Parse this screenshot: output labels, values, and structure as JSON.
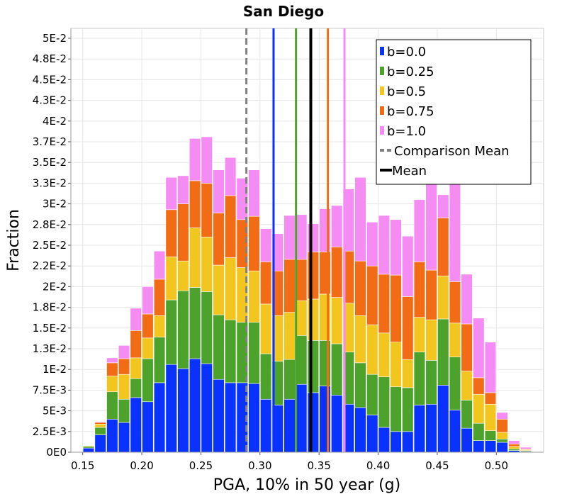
{
  "chart_data": {
    "type": "bar",
    "stacking": "stacked",
    "title": "San Diego",
    "xlabel": "PGA, 10% in 50 year (g)",
    "ylabel": "Fraction",
    "xlim": [
      0.14,
      0.54
    ],
    "ylim": [
      0,
      0.0512
    ],
    "x_ticks": [
      {
        "value": 0.15,
        "label": "0.15"
      },
      {
        "value": 0.2,
        "label": "0.20"
      },
      {
        "value": 0.25,
        "label": "0.25"
      },
      {
        "value": 0.3,
        "label": "0.30"
      },
      {
        "value": 0.35,
        "label": "0.35"
      },
      {
        "value": 0.4,
        "label": "0.40"
      },
      {
        "value": 0.45,
        "label": "0.45"
      },
      {
        "value": 0.5,
        "label": "0.50"
      }
    ],
    "y_ticks": [
      {
        "value": 0,
        "label": "0E0"
      },
      {
        "value": 0.0025,
        "label": "2.5E-3"
      },
      {
        "value": 0.005,
        "label": "5E-3"
      },
      {
        "value": 0.0075,
        "label": "7.5E-3"
      },
      {
        "value": 0.01,
        "label": "1E-2"
      },
      {
        "value": 0.0125,
        "label": "1.3E-2"
      },
      {
        "value": 0.015,
        "label": "1.5E-2"
      },
      {
        "value": 0.0175,
        "label": "1.8E-2"
      },
      {
        "value": 0.02,
        "label": "2E-2"
      },
      {
        "value": 0.0225,
        "label": "2.2E-2"
      },
      {
        "value": 0.025,
        "label": "2.5E-2"
      },
      {
        "value": 0.0275,
        "label": "2.8E-2"
      },
      {
        "value": 0.03,
        "label": "3E-2"
      },
      {
        "value": 0.0325,
        "label": "3.3E-2"
      },
      {
        "value": 0.035,
        "label": "3.5E-2"
      },
      {
        "value": 0.0375,
        "label": "3.7E-2"
      },
      {
        "value": 0.04,
        "label": "4E-2"
      },
      {
        "value": 0.0425,
        "label": "4.3E-2"
      },
      {
        "value": 0.045,
        "label": "4.5E-2"
      },
      {
        "value": 0.0475,
        "label": "4.8E-2"
      },
      {
        "value": 0.05,
        "label": "5E-2"
      }
    ],
    "bin_width": 0.01,
    "bin_centers": [
      0.155,
      0.165,
      0.175,
      0.185,
      0.195,
      0.205,
      0.215,
      0.225,
      0.235,
      0.245,
      0.255,
      0.265,
      0.275,
      0.285,
      0.295,
      0.305,
      0.315,
      0.325,
      0.335,
      0.345,
      0.355,
      0.365,
      0.375,
      0.385,
      0.395,
      0.405,
      0.415,
      0.425,
      0.435,
      0.445,
      0.455,
      0.465,
      0.475,
      0.485,
      0.495,
      0.505,
      0.515,
      0.525
    ],
    "series": [
      {
        "name": "b=0.0",
        "color": "#0a32ff",
        "values": [
          0.0005,
          0.0021,
          0.004,
          0.0036,
          0.0066,
          0.0061,
          0.0084,
          0.0106,
          0.0101,
          0.0113,
          0.0107,
          0.0088,
          0.0084,
          0.0084,
          0.0083,
          0.0064,
          0.0057,
          0.0064,
          0.0082,
          0.0072,
          0.008,
          0.0069,
          0.0058,
          0.0054,
          0.0045,
          0.003,
          0.0025,
          0.0025,
          0.0057,
          0.0058,
          0.0081,
          0.0051,
          0.0029,
          0.0014,
          0.0014,
          0.0012,
          0.0002,
          0.0001
        ]
      },
      {
        "name": "b=0.25",
        "color": "#4ca22a",
        "values": [
          0.0002,
          0.0009,
          0.0033,
          0.0028,
          0.0023,
          0.0052,
          0.0055,
          0.0078,
          0.0094,
          0.0086,
          0.0087,
          0.0078,
          0.0076,
          0.0073,
          0.0074,
          0.0055,
          0.0053,
          0.0048,
          0.0059,
          0.0063,
          0.0055,
          0.0062,
          0.0063,
          0.0054,
          0.0049,
          0.0061,
          0.0054,
          0.0053,
          0.0064,
          0.0053,
          0.008,
          0.0064,
          0.0034,
          0.0021,
          0.0012,
          0.0004,
          0.0002,
          0.0001
        ]
      },
      {
        "name": "b=0.5",
        "color": "#f2c61f",
        "values": [
          0.0001,
          0.0004,
          0.0019,
          0.003,
          0.0025,
          0.0025,
          0.0026,
          0.0052,
          0.0036,
          0.0072,
          0.0066,
          0.006,
          0.0075,
          0.0066,
          0.0062,
          0.006,
          0.0055,
          0.0057,
          0.0042,
          0.005,
          0.0056,
          0.0056,
          0.0059,
          0.0057,
          0.006,
          0.0053,
          0.0054,
          0.0034,
          0.0042,
          0.0049,
          0.0052,
          0.0041,
          0.0035,
          0.0035,
          0.0032,
          0.0008,
          0.0003,
          0.0001
        ]
      },
      {
        "name": "b=0.75",
        "color": "#f26c16",
        "values": [
          0.0,
          0.0002,
          0.0016,
          0.0019,
          0.0033,
          0.0029,
          0.0044,
          0.0057,
          0.0069,
          0.0057,
          0.0065,
          0.0063,
          0.0075,
          0.0058,
          0.0066,
          0.0051,
          0.0054,
          0.0064,
          0.005,
          0.0057,
          0.0051,
          0.0061,
          0.0063,
          0.0066,
          0.0071,
          0.0071,
          0.0081,
          0.0076,
          0.0067,
          0.006,
          0.007,
          0.005,
          0.0057,
          0.002,
          0.0014,
          0.0016,
          0.0003,
          0.0001
        ]
      },
      {
        "name": "b=1.0",
        "color": "#f58cf3",
        "values": [
          0.0,
          0.0001,
          0.0006,
          0.0016,
          0.0027,
          0.0033,
          0.0034,
          0.0039,
          0.0034,
          0.0051,
          0.0056,
          0.0052,
          0.0046,
          0.005,
          0.0056,
          0.004,
          0.0045,
          0.0053,
          0.0054,
          0.0034,
          0.0052,
          0.005,
          0.0075,
          0.0101,
          0.0053,
          0.0071,
          0.0067,
          0.0073,
          0.0075,
          0.0126,
          0.0028,
          0.0125,
          0.006,
          0.0072,
          0.0061,
          0.0008,
          0.0004,
          0.0002
        ]
      }
    ],
    "vlines": [
      {
        "name": "b=0.0 mean",
        "x": 0.3115,
        "color": "#0a32ff",
        "style": "solid"
      },
      {
        "name": "b=0.25 mean",
        "x": 0.3305,
        "color": "#4ca22a",
        "style": "solid"
      },
      {
        "name": "b=0.75 mean",
        "x": 0.3575,
        "color": "#f26c16",
        "style": "solid"
      },
      {
        "name": "b=1.0 mean",
        "x": 0.3715,
        "color": "#f58cf3",
        "style": "solid"
      },
      {
        "name": "Mean",
        "x": 0.343,
        "color": "#000000",
        "style": "solid"
      },
      {
        "name": "Comparison Mean",
        "x": 0.2885,
        "color": "#808080",
        "style": "dashed"
      }
    ],
    "legend": {
      "position": "top-right",
      "entries": [
        {
          "label": "b=0.0",
          "color": "#0a32ff",
          "kind": "box"
        },
        {
          "label": "b=0.25",
          "color": "#4ca22a",
          "kind": "box"
        },
        {
          "label": "b=0.5",
          "color": "#f2c61f",
          "kind": "box"
        },
        {
          "label": "b=0.75",
          "color": "#f26c16",
          "kind": "box"
        },
        {
          "label": "b=1.0",
          "color": "#f58cf3",
          "kind": "box"
        },
        {
          "label": "Comparison Mean",
          "color": "#808080",
          "kind": "dashed"
        },
        {
          "label": "Mean",
          "color": "#000000",
          "kind": "line"
        }
      ]
    },
    "grid": true
  }
}
